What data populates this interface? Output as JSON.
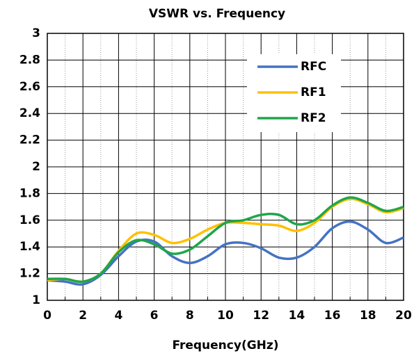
{
  "chart_data": {
    "type": "line",
    "title": "VSWR vs. Frequency",
    "x_label": "Frequency(GHz)",
    "x": [
      0,
      1,
      2,
      3,
      4,
      5,
      6,
      7,
      8,
      9,
      10,
      11,
      12,
      13,
      14,
      15,
      16,
      17,
      18,
      19,
      20
    ],
    "series": [
      {
        "name": "RFC",
        "color": "#4472c4",
        "values": [
          1.15,
          1.14,
          1.12,
          1.19,
          1.33,
          1.44,
          1.44,
          1.33,
          1.28,
          1.33,
          1.42,
          1.43,
          1.39,
          1.32,
          1.32,
          1.4,
          1.54,
          1.59,
          1.53,
          1.43,
          1.47
        ]
      },
      {
        "name": "RF1",
        "color": "#ffc000",
        "values": [
          1.15,
          1.16,
          1.14,
          1.2,
          1.37,
          1.5,
          1.49,
          1.43,
          1.46,
          1.53,
          1.58,
          1.58,
          1.57,
          1.56,
          1.52,
          1.58,
          1.7,
          1.76,
          1.72,
          1.66,
          1.69
        ]
      },
      {
        "name": "RF2",
        "color": "#1fa64a",
        "values": [
          1.16,
          1.16,
          1.14,
          1.2,
          1.36,
          1.45,
          1.42,
          1.35,
          1.38,
          1.48,
          1.58,
          1.6,
          1.64,
          1.64,
          1.57,
          1.6,
          1.71,
          1.77,
          1.73,
          1.67,
          1.7
        ]
      }
    ],
    "xlim": [
      0,
      20
    ],
    "xticks": [
      0,
      2,
      4,
      6,
      8,
      10,
      12,
      14,
      16,
      18,
      20
    ],
    "ylim": [
      1,
      3
    ],
    "yticks": [
      1,
      1.2,
      1.4,
      1.6,
      1.8,
      2,
      2.2,
      2.4,
      2.6,
      2.8,
      3
    ],
    "grid": true,
    "legend": "upper right"
  }
}
